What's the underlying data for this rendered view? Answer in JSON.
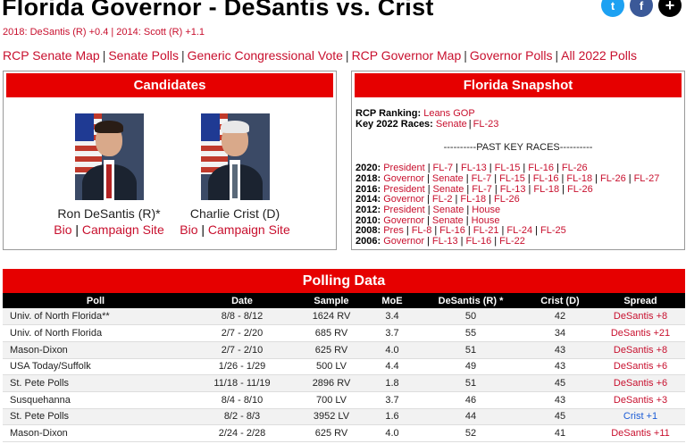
{
  "header": {
    "title": "Florida Governor - DeSantis vs. Crist",
    "subtitle": "2018: DeSantis (R) +0.4 | 2014: Scott (R) +1.1"
  },
  "social": {
    "twitter": "t",
    "facebook": "f",
    "plus": "+"
  },
  "nav": {
    "links": [
      "RCP Senate Map",
      "Senate Polls",
      "Generic Congressional Vote",
      "RCP Governor Map",
      "Governor Polls",
      "All 2022 Polls"
    ],
    "separator": "|"
  },
  "candidates": {
    "heading": "Candidates",
    "list": [
      {
        "name": "Ron DeSantis (R)*",
        "bio": "Bio",
        "site": "Campaign Site",
        "sep": "|"
      },
      {
        "name": "Charlie Crist (D)",
        "bio": "Bio",
        "site": "Campaign Site",
        "sep": "|"
      }
    ]
  },
  "snapshot": {
    "heading": "Florida Snapshot",
    "ranking_label": "RCP Ranking:",
    "ranking_value": "Leans GOP",
    "key_label": "Key 2022 Races:",
    "key_races": [
      "Senate",
      "FL-23"
    ],
    "past_label": "----------PAST KEY RACES----------",
    "past": [
      {
        "year": "2020:",
        "races": [
          "President",
          "FL-7",
          "FL-13",
          "FL-15",
          "FL-16",
          "FL-26"
        ]
      },
      {
        "year": "2018:",
        "races": [
          "Governor",
          "Senate",
          "FL-7",
          "FL-15",
          "FL-16",
          "FL-18",
          "FL-26",
          "FL-27"
        ]
      },
      {
        "year": "2016:",
        "races": [
          "President",
          "Senate",
          "FL-7",
          "FL-13",
          "FL-18",
          "FL-26"
        ]
      },
      {
        "year": "2014:",
        "races": [
          "Governor",
          "FL-2",
          "FL-18",
          "FL-26"
        ]
      },
      {
        "year": "2012:",
        "races": [
          "President",
          "Senate",
          "House"
        ]
      },
      {
        "year": "2010:",
        "races": [
          "Governor",
          "Senate",
          "House"
        ]
      },
      {
        "year": "2008:",
        "races": [
          "Pres",
          "FL-8",
          "FL-16",
          "FL-21",
          "FL-24",
          "FL-25"
        ]
      },
      {
        "year": "2006:",
        "races": [
          "Governor",
          "FL-13",
          "FL-16",
          "FL-22"
        ]
      }
    ]
  },
  "polling": {
    "heading": "Polling Data",
    "columns": [
      "Poll",
      "Date",
      "Sample",
      "MoE",
      "DeSantis (R) *",
      "Crist (D)",
      "Spread"
    ],
    "rows": [
      [
        "Univ. of North Florida**",
        "8/8 - 8/12",
        "1624 RV",
        "3.4",
        "50",
        "42",
        "DeSantis +8"
      ],
      [
        "Univ. of North Florida",
        "2/7 - 2/20",
        "685 RV",
        "3.7",
        "55",
        "34",
        "DeSantis +21"
      ],
      [
        "Mason-Dixon",
        "2/7 - 2/10",
        "625 RV",
        "4.0",
        "51",
        "43",
        "DeSantis +8"
      ],
      [
        "USA Today/Suffolk",
        "1/26 - 1/29",
        "500 LV",
        "4.4",
        "49",
        "43",
        "DeSantis +6"
      ],
      [
        "St. Pete Polls",
        "11/18 - 11/19",
        "2896 RV",
        "1.8",
        "51",
        "45",
        "DeSantis +6"
      ],
      [
        "Susquehanna",
        "8/4 - 8/10",
        "700 LV",
        "3.7",
        "46",
        "43",
        "DeSantis +3"
      ],
      [
        "St. Pete Polls",
        "8/2 - 8/3",
        "3952 LV",
        "1.6",
        "44",
        "45",
        "Crist +1"
      ],
      [
        "Mason-Dixon",
        "2/24 - 2/28",
        "625 RV",
        "4.0",
        "52",
        "41",
        "DeSantis +11"
      ]
    ]
  },
  "colors": {
    "accent": "#e60000",
    "link": "#c8102e",
    "dem": "#1a5bd6"
  }
}
